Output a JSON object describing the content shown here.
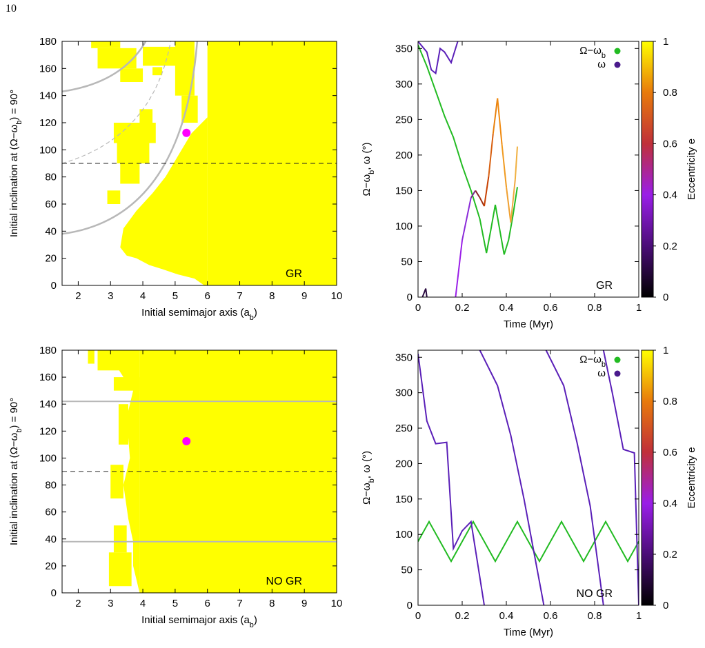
{
  "page_number": "10",
  "colors": {
    "region": "#ffff00",
    "marker": "#ff00ff",
    "omega_b": "#22bb22",
    "grey": "#b8b8b8"
  },
  "chart_data": [
    {
      "id": "top-left",
      "type": "heatmap",
      "annotation": "GR",
      "xlabel_html": "Initial semimajor axis (a<tspan baseline-shift=\"sub\" font-size=\"11\">b</tspan>)",
      "ylabel_html": "Initial inclination at (Ω−ω<tspan baseline-shift=\"sub\" font-size=\"11\">b</tspan>) = 90°",
      "xlim": [
        1.5,
        10
      ],
      "ylim": [
        0,
        180
      ],
      "xticks": [
        2,
        3,
        4,
        5,
        6,
        7,
        8,
        9,
        10
      ],
      "yticks": [
        0,
        20,
        40,
        60,
        80,
        100,
        120,
        140,
        160,
        180
      ],
      "dashed_y": 90,
      "marker": {
        "x": 5.35,
        "y": 112.5
      }
    },
    {
      "id": "top-right",
      "type": "line",
      "annotation": "GR",
      "xlabel": "Time (Myr)",
      "ylabel_html": "Ω−ω<tspan baseline-shift=\"sub\" font-size=\"11\">b</tspan>, ω (°)",
      "xlim": [
        0,
        1
      ],
      "ylim": [
        0,
        360
      ],
      "xticks": [
        0,
        0.2,
        0.4,
        0.6,
        0.8,
        1
      ],
      "yticks": [
        0,
        50,
        100,
        150,
        200,
        250,
        300,
        350
      ],
      "legend": [
        {
          "label_html": "Ω−ω<tspan baseline-shift=\"sub\" font-size=\"11\">b</tspan>",
          "color": "#22bb22"
        },
        {
          "label_html": "ω",
          "color": "#4a1a8c"
        }
      ],
      "colorbar": {
        "label": "Eccentricity e",
        "range": [
          0,
          1
        ],
        "ticks": [
          0,
          0.2,
          0.4,
          0.6,
          0.8,
          1
        ]
      },
      "series": [
        {
          "name": "Ω−ω_b",
          "x": [
            0,
            0.04,
            0.08,
            0.12,
            0.16,
            0.2,
            0.24,
            0.28,
            0.31,
            0.33,
            0.35,
            0.37,
            0.39,
            0.41,
            0.43,
            0.45
          ],
          "y": [
            355,
            325,
            290,
            255,
            225,
            185,
            150,
            110,
            62,
            95,
            130,
            95,
            60,
            80,
            115,
            155
          ]
        },
        {
          "name": "ω",
          "x": [
            0.17,
            0.2,
            0.24,
            0.26,
            0.28,
            0.3,
            0.32,
            0.34,
            0.36,
            0.38,
            0.4,
            0.42,
            0.44,
            0.45
          ],
          "y": [
            0,
            80,
            140,
            150,
            140,
            128,
            170,
            230,
            280,
            215,
            155,
            105,
            165,
            212
          ]
        }
      ]
    },
    {
      "id": "bottom-left",
      "type": "heatmap",
      "annotation": "NO GR",
      "xlabel_html": "Initial semimajor axis (a<tspan baseline-shift=\"sub\" font-size=\"11\">b</tspan>)",
      "ylabel_html": "Initial inclination at (Ω−ω<tspan baseline-shift=\"sub\" font-size=\"11\">b</tspan>) = 90°",
      "xlim": [
        1.5,
        10
      ],
      "ylim": [
        0,
        180
      ],
      "xticks": [
        2,
        3,
        4,
        5,
        6,
        7,
        8,
        9,
        10
      ],
      "yticks": [
        0,
        20,
        40,
        60,
        80,
        100,
        120,
        140,
        160,
        180
      ],
      "dashed_y": 90,
      "solid_y": [
        142,
        38
      ],
      "marker": {
        "x": 5.35,
        "y": 112.5
      }
    },
    {
      "id": "bottom-right",
      "type": "line",
      "annotation": "NO GR",
      "xlabel": "Time (Myr)",
      "ylabel_html": "Ω−ω<tspan baseline-shift=\"sub\" font-size=\"11\">b</tspan>, ω (°)",
      "xlim": [
        0,
        1
      ],
      "ylim": [
        0,
        360
      ],
      "xticks": [
        0,
        0.2,
        0.4,
        0.6,
        0.8,
        1
      ],
      "yticks": [
        0,
        50,
        100,
        150,
        200,
        250,
        300,
        350
      ],
      "legend": [
        {
          "label_html": "Ω−ω<tspan baseline-shift=\"sub\" font-size=\"11\">b</tspan>",
          "color": "#22bb22"
        },
        {
          "label_html": "ω",
          "color": "#4a1a8c"
        }
      ],
      "colorbar": {
        "label": "Eccentricity e",
        "range": [
          0,
          1
        ],
        "ticks": [
          0,
          0.2,
          0.4,
          0.6,
          0.8,
          1
        ]
      },
      "series": [
        {
          "name": "Ω−ω_b",
          "x": [
            0,
            0.05,
            0.1,
            0.15,
            0.2,
            0.25,
            0.3,
            0.35,
            0.4,
            0.45,
            0.5,
            0.55,
            0.6,
            0.65,
            0.7,
            0.75,
            0.8,
            0.85,
            0.9,
            0.95,
            1.0
          ],
          "y": [
            90,
            118,
            90,
            62,
            90,
            118,
            90,
            62,
            90,
            118,
            90,
            62,
            90,
            118,
            90,
            62,
            90,
            118,
            90,
            62,
            90
          ]
        },
        {
          "name": "ω",
          "x": [
            0,
            0.04,
            0.08,
            0.13,
            0.16,
            0.2,
            0.24,
            0.3
          ],
          "y": [
            355,
            260,
            228,
            230,
            80,
            105,
            118,
            0
          ]
        },
        {
          "name": "ω",
          "x": [
            0.28,
            0.36,
            0.42,
            0.48,
            0.57
          ],
          "y": [
            360,
            310,
            240,
            150,
            0
          ]
        },
        {
          "name": "ω",
          "x": [
            0.58,
            0.66,
            0.72,
            0.78,
            0.84
          ],
          "y": [
            360,
            310,
            230,
            140,
            0
          ]
        },
        {
          "name": "ω",
          "x": [
            0.84,
            0.88,
            0.93,
            0.98,
            1.0
          ],
          "y": [
            360,
            300,
            220,
            215,
            0
          ]
        }
      ]
    }
  ]
}
